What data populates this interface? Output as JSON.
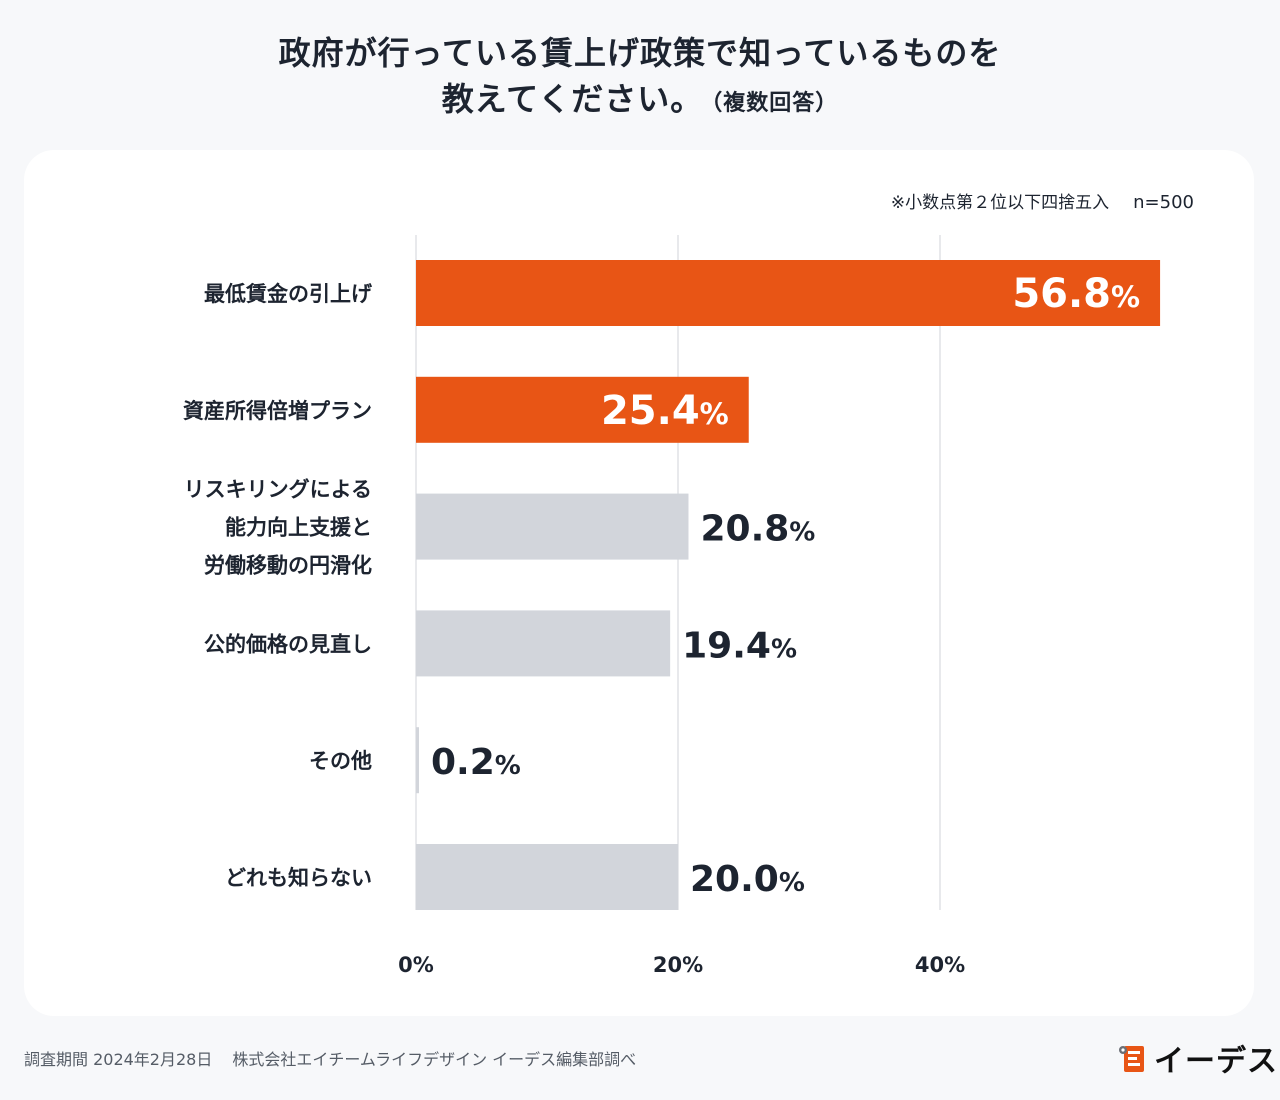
{
  "title": {
    "line1": "政府が行っている賃上げ政策で知っているものを",
    "line2": "教えてください。",
    "note": "（複数回答）"
  },
  "meta": {
    "rounding_note": "※小数点第２位以下四捨五入",
    "sample": "n=500"
  },
  "chart_data": {
    "type": "bar",
    "orientation": "horizontal",
    "title": "政府が行っている賃上げ政策で知っているものを教えてください。（複数回答）",
    "xlabel": "",
    "ylabel": "",
    "xlim": [
      0,
      60
    ],
    "xticks": [
      0,
      20,
      40
    ],
    "xtick_labels": [
      "0%",
      "20%",
      "40%"
    ],
    "grid": true,
    "categories": [
      [
        "最低賃金の引上げ"
      ],
      [
        "資産所得倍増プラン"
      ],
      [
        "リスキリングによる",
        "能力向上支援と",
        "労働移動の円滑化"
      ],
      [
        "公的価格の見直し"
      ],
      [
        "その他"
      ],
      [
        "どれも知らない"
      ]
    ],
    "values": [
      56.8,
      25.4,
      20.8,
      19.4,
      0.2,
      20.0
    ],
    "value_labels": [
      "56.8",
      "25.4",
      "20.8",
      "19.4",
      "0.2",
      "20.0"
    ],
    "unit": "%",
    "highlighted": [
      true,
      true,
      false,
      false,
      false,
      false
    ],
    "colors": {
      "highlight": "#e85515",
      "default": "#d2d5db",
      "label_dark": "#1d2430",
      "label_light": "#ffffff",
      "grid": "#d0d3d8"
    }
  },
  "footer": {
    "period": "調査期間 2024年2月28日",
    "org": "株式会社エイチームライフデザイン イーデス編集部調べ"
  },
  "logo": {
    "text": "イーデス",
    "mark_color": "#e85515"
  }
}
